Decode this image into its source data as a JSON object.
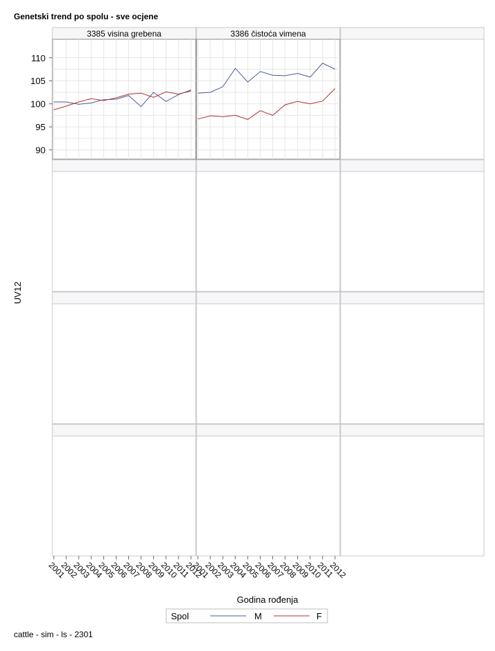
{
  "chart_data": {
    "type": "line",
    "title": "Genetski trend po spolu - sve ocjene",
    "xlabel": "Godina rođenja",
    "ylabel": "UV12",
    "footnote": "cattle - sim - ls - 2301",
    "x": [
      "2001",
      "2002",
      "2003",
      "2004",
      "2005",
      "2006",
      "2007",
      "2008",
      "2009",
      "2010",
      "2011",
      "2012"
    ],
    "ylim": [
      88,
      114
    ],
    "yticks": [
      90,
      95,
      100,
      105,
      110
    ],
    "grid": true,
    "legend": {
      "title": "Spol",
      "placement": "bottom"
    },
    "panels": [
      {
        "label": "3385 visina grebena",
        "series": [
          {
            "name": "M",
            "color": "#4a5a95",
            "values": [
              100.4,
              100.4,
              99.9,
              100.2,
              100.9,
              101.0,
              101.8,
              99.4,
              102.5,
              100.5,
              102.0,
              103.0
            ]
          },
          {
            "name": "F",
            "color": "#b03030",
            "values": [
              98.7,
              99.5,
              100.4,
              101.1,
              100.7,
              101.3,
              102.1,
              102.3,
              101.4,
              102.6,
              102.1,
              102.8
            ]
          }
        ]
      },
      {
        "label": "3386 čistoća vimena",
        "series": [
          {
            "name": "M",
            "color": "#4a5a95",
            "values": [
              102.3,
              102.5,
              103.7,
              107.7,
              104.7,
              107.0,
              106.2,
              106.1,
              106.6,
              105.8,
              108.8,
              107.5
            ]
          },
          {
            "name": "F",
            "color": "#b03030",
            "values": [
              96.7,
              97.4,
              97.2,
              97.5,
              96.6,
              98.5,
              97.5,
              99.8,
              100.5,
              100.0,
              100.6,
              103.3
            ]
          }
        ]
      }
    ]
  }
}
